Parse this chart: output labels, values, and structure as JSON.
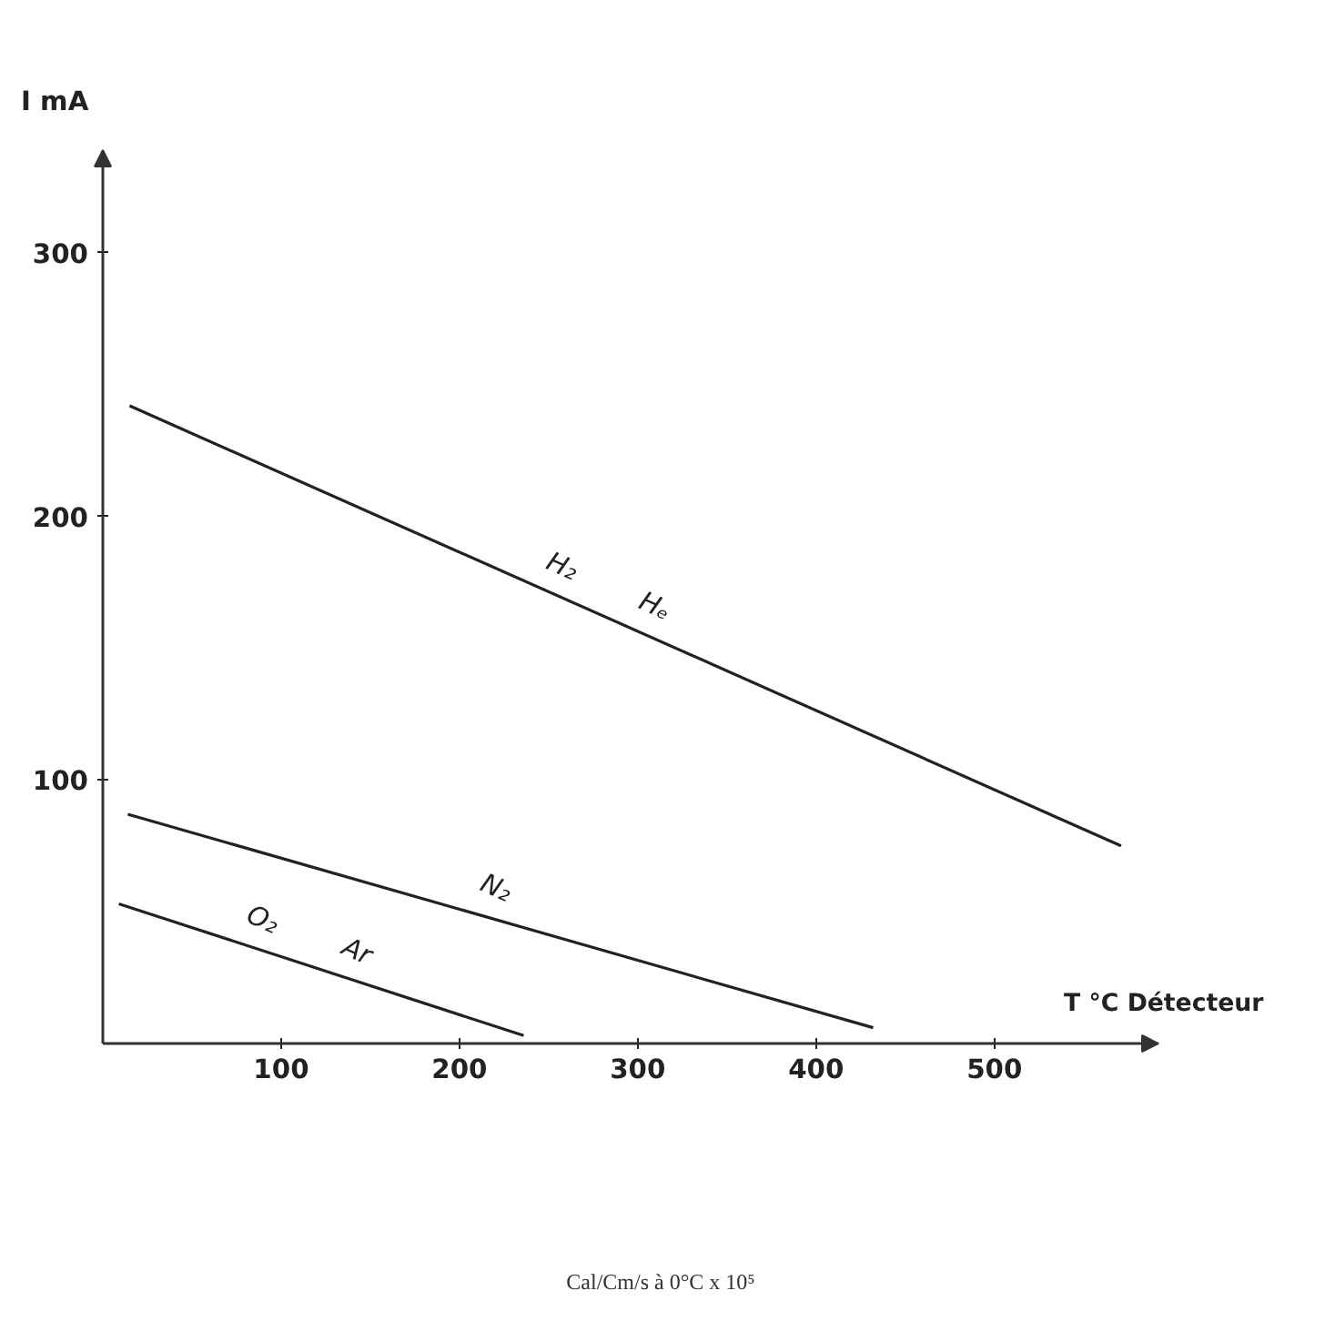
{
  "chart_data": {
    "type": "line",
    "ylabel": "I mA",
    "xlabel": "T °C Détecteur",
    "xlim": [
      0,
      592
    ],
    "ylim": [
      0,
      339
    ],
    "xticks": [
      100,
      200,
      300,
      400,
      500
    ],
    "yticks": [
      100,
      200,
      300
    ],
    "grid": false,
    "marker": "none",
    "line_style": "solid",
    "series": [
      {
        "color": "#222222",
        "x": [
          15,
          571
        ],
        "values": [
          242,
          75
        ]
      },
      {
        "color": "#222222",
        "x": [
          14,
          432
        ],
        "values": [
          87,
          6
        ]
      },
      {
        "color": "#222222",
        "x": [
          9,
          236
        ],
        "values": [
          53,
          3
        ]
      }
    ],
    "annotations": [
      {
        "text": "H₂",
        "x": 254,
        "y": 170
      },
      {
        "text": "Hₑ",
        "x": 306,
        "y": 155
      },
      {
        "text": "N₂",
        "x": 217,
        "y": 48
      },
      {
        "text": "O₂",
        "x": 86,
        "y": 36
      },
      {
        "text": "Ar",
        "x": 139,
        "y": 24
      },
      "Cal/Cm/s à 0°C  x 10⁵"
    ]
  }
}
